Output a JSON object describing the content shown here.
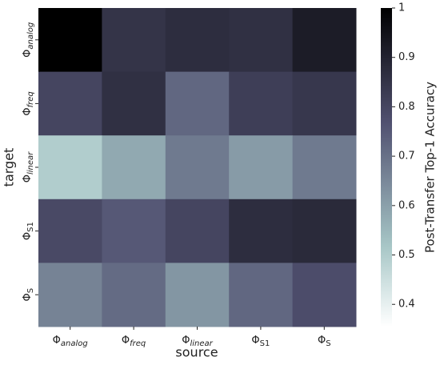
{
  "chart_data": {
    "type": "heatmap",
    "xlabel": "source",
    "ylabel": "target",
    "x_categories": [
      "Φanalog",
      "Φfreq",
      "Φlinear",
      "ΦS1",
      "ΦS"
    ],
    "y_categories": [
      "Φanalog",
      "Φfreq",
      "Φlinear",
      "ΦS1",
      "ΦS"
    ],
    "values": [
      [
        1.0,
        0.85,
        0.87,
        0.86,
        0.92
      ],
      [
        0.8,
        0.86,
        0.72,
        0.82,
        0.84
      ],
      [
        0.5,
        0.58,
        0.68,
        0.61,
        0.68
      ],
      [
        0.79,
        0.75,
        0.8,
        0.87,
        0.88
      ],
      [
        0.66,
        0.71,
        0.62,
        0.72,
        0.78
      ]
    ],
    "colormap": "bone_r",
    "colorbar_label": "Post-Transfer Top-1 Accuracy",
    "clim": [
      0.355,
      1.0
    ],
    "cticks": [
      0.4,
      0.5,
      0.6,
      0.7,
      0.8,
      0.9,
      1.0
    ]
  }
}
